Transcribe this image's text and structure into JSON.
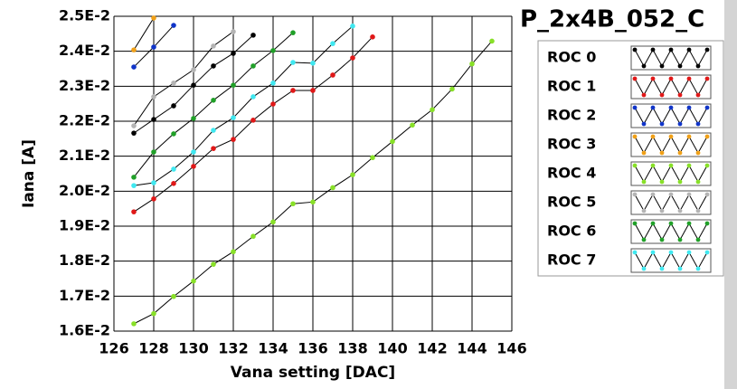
{
  "chart_data": {
    "type": "line",
    "title": "P_2x4B_052_C",
    "xlabel": "Vana setting [DAC]",
    "ylabel": "Iana [A]",
    "xlim": [
      126,
      146
    ],
    "xticks": [
      126,
      128,
      130,
      132,
      134,
      136,
      138,
      140,
      142,
      144,
      146
    ],
    "ylim": [
      0.016,
      0.025
    ],
    "yticks": [
      {
        "value": 0.016,
        "label": "1.6E-2"
      },
      {
        "value": 0.017,
        "label": "1.7E-2"
      },
      {
        "value": 0.018,
        "label": "1.8E-2"
      },
      {
        "value": 0.019,
        "label": "1.9E-2"
      },
      {
        "value": 0.02,
        "label": "2.0E-2"
      },
      {
        "value": 0.021,
        "label": "2.1E-2"
      },
      {
        "value": 0.022,
        "label": "2.2E-2"
      },
      {
        "value": 0.023,
        "label": "2.3E-2"
      },
      {
        "value": 0.024,
        "label": "2.4E-2"
      },
      {
        "value": 0.025,
        "label": "2.5E-2"
      }
    ],
    "grid": true,
    "series": [
      {
        "name": "ROC 0",
        "color": "#000000",
        "x": [
          127,
          128,
          129,
          130,
          131,
          132,
          133
        ],
        "values": [
          0.02166,
          0.02205,
          0.02244,
          0.02303,
          0.02358,
          0.02394,
          0.02446
        ]
      },
      {
        "name": "ROC 1",
        "color": "#e01818",
        "x": [
          127,
          128,
          129,
          130,
          131,
          132,
          133,
          134,
          135,
          136,
          137,
          138,
          139
        ],
        "values": [
          0.01941,
          0.01978,
          0.02022,
          0.02071,
          0.02122,
          0.02148,
          0.02203,
          0.02249,
          0.02288,
          0.02288,
          0.02332,
          0.02381,
          0.02441
        ]
      },
      {
        "name": "ROC 2",
        "color": "#1034c8",
        "x": [
          127,
          128,
          129
        ],
        "values": [
          0.02355,
          0.02412,
          0.02474
        ]
      },
      {
        "name": "ROC 3",
        "color": "#f0a018",
        "x": [
          127,
          128
        ],
        "values": [
          0.02404,
          0.02495
        ]
      },
      {
        "name": "ROC 4",
        "color": "#88e028",
        "x": [
          127,
          128,
          129,
          130,
          131,
          132,
          133,
          134,
          135,
          136,
          137,
          138,
          139,
          140,
          141,
          142,
          143,
          144,
          145
        ],
        "values": [
          0.01621,
          0.0165,
          0.01699,
          0.01743,
          0.01791,
          0.01827,
          0.01871,
          0.01912,
          0.01964,
          0.01969,
          0.0201,
          0.02047,
          0.02096,
          0.02142,
          0.02189,
          0.02233,
          0.02292,
          0.02364,
          0.02429
        ]
      },
      {
        "name": "ROC 5",
        "color": "#b4b4b4",
        "x": [
          127,
          128,
          129,
          130,
          131,
          132
        ],
        "values": [
          0.02187,
          0.0227,
          0.02309,
          0.02347,
          0.02415,
          0.02456
        ]
      },
      {
        "name": "ROC 6",
        "color": "#20a028",
        "x": [
          127,
          128,
          129,
          130,
          131,
          132,
          133,
          134,
          135
        ],
        "values": [
          0.0204,
          0.02112,
          0.02164,
          0.02208,
          0.0226,
          0.02303,
          0.02358,
          0.02402,
          0.02453
        ]
      },
      {
        "name": "ROC 7",
        "color": "#40e8f0",
        "x": [
          127,
          128,
          129,
          130,
          131,
          132,
          133,
          134,
          135,
          136,
          137,
          138
        ],
        "values": [
          0.02016,
          0.02024,
          0.02063,
          0.02112,
          0.02174,
          0.0221,
          0.0227,
          0.02309,
          0.02368,
          0.02366,
          0.02422,
          0.02472
        ]
      }
    ]
  }
}
